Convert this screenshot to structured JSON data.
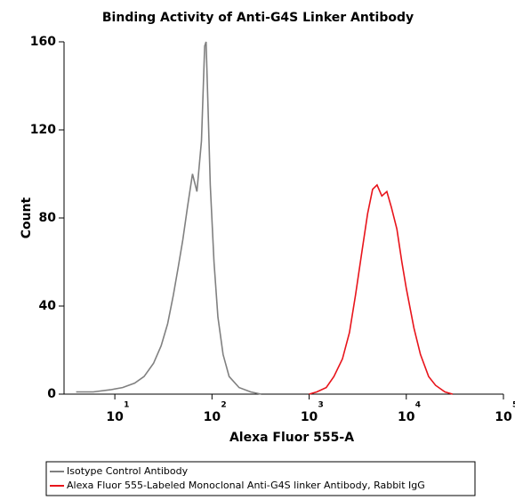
{
  "chart_data": {
    "type": "line",
    "title": "Binding Activity of Anti-G4S Linker Antibody",
    "x_label": "Alexa Fluor 555-A",
    "y_label": "Count",
    "x_scale": "log",
    "xlim": [
      3,
      100000
    ],
    "xticks": [
      {
        "value": 10,
        "label": "10",
        "exponent": "1"
      },
      {
        "value": 100,
        "label": "10",
        "exponent": "2"
      },
      {
        "value": 1000,
        "label": "10",
        "exponent": "3"
      },
      {
        "value": 10000,
        "label": "10",
        "exponent": "4"
      },
      {
        "value": 100000,
        "label": "10",
        "exponent": "5"
      }
    ],
    "ylim": [
      0,
      160
    ],
    "yticks": [
      0,
      40,
      80,
      120,
      160
    ],
    "series": [
      {
        "name": "Isotype Control Antibody",
        "color": "#808080",
        "x": [
          4,
          6,
          9,
          12,
          16,
          20,
          25,
          30,
          35,
          40,
          45,
          50,
          56,
          63,
          70,
          78,
          84,
          87,
          91,
          96,
          105,
          115,
          130,
          150,
          190,
          250,
          320
        ],
        "values": [
          1,
          1,
          2,
          3,
          5,
          8,
          14,
          22,
          32,
          45,
          58,
          70,
          85,
          100,
          92,
          115,
          158,
          160,
          130,
          95,
          60,
          35,
          18,
          8,
          3,
          1,
          0
        ]
      },
      {
        "name": "Alexa Fluor 555-Labeled Monoclonal Anti-G4S linker Antibody, Rabbit IgG",
        "color": "#e8141b",
        "x": [
          1000,
          1200,
          1500,
          1800,
          2200,
          2600,
          3000,
          3500,
          4000,
          4500,
          5000,
          5600,
          6300,
          7000,
          8000,
          9000,
          10000,
          12000,
          14000,
          17000,
          20000,
          25000,
          30000
        ],
        "values": [
          0,
          1,
          3,
          8,
          16,
          28,
          45,
          65,
          82,
          93,
          95,
          90,
          92,
          85,
          75,
          60,
          48,
          30,
          18,
          8,
          4,
          1,
          0
        ]
      }
    ]
  }
}
